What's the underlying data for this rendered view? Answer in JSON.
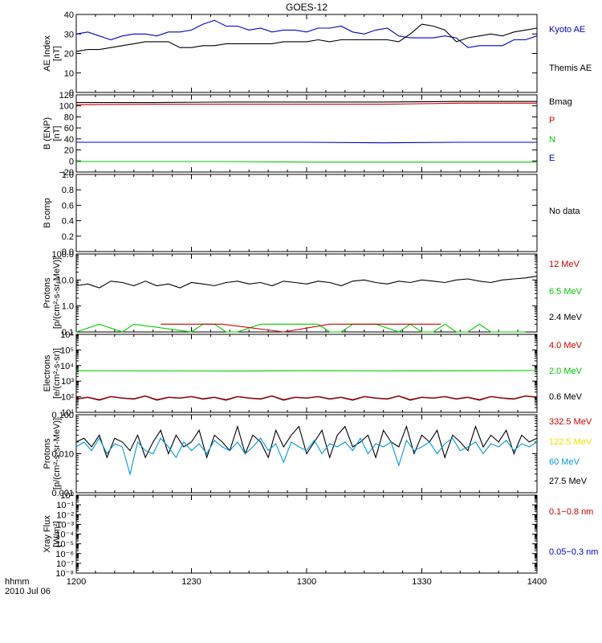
{
  "title": "GOES-12",
  "footer": {
    "label_1": "hhmm",
    "label_2": "2010 Jul 06"
  },
  "x_axis": {
    "ticks": [
      "1200",
      "1230",
      "1300",
      "1330",
      "1400"
    ],
    "range": [
      0,
      120
    ]
  },
  "chart_data": [
    {
      "type": "line",
      "ylabel_1": "AE Index",
      "ylabel_2": "[nT]",
      "scale": "linear",
      "ylim": [
        0,
        40
      ],
      "yticks": [
        "0",
        "10",
        "20",
        "30",
        "40"
      ],
      "legend": [
        {
          "name": "Kyoto AE",
          "color": "#0000cc"
        },
        {
          "name": "Themis AE",
          "color": "#000000"
        }
      ],
      "series": [
        {
          "name": "Kyoto AE",
          "color": "#0000cc",
          "x": [
            0,
            3,
            6,
            9,
            12,
            15,
            18,
            21,
            24,
            27,
            30,
            33,
            36,
            39,
            42,
            45,
            48,
            51,
            54,
            57,
            60,
            63,
            66,
            69,
            72,
            75,
            78,
            81,
            84,
            87,
            90,
            93,
            96,
            99,
            102,
            105,
            108,
            111,
            114,
            117,
            120
          ],
          "values": [
            30,
            31,
            29,
            27,
            29,
            30,
            30,
            29,
            31,
            31,
            32,
            35,
            37,
            34,
            34,
            32,
            33,
            31,
            32,
            32,
            31,
            33,
            33,
            34,
            31,
            30,
            32,
            33,
            29,
            28,
            28,
            28,
            29,
            28,
            23,
            24,
            24,
            24,
            27,
            27,
            29
          ]
        },
        {
          "name": "Themis AE",
          "color": "#000000",
          "x": [
            0,
            3,
            6,
            9,
            12,
            15,
            18,
            21,
            24,
            27,
            30,
            33,
            36,
            39,
            42,
            45,
            48,
            51,
            54,
            57,
            60,
            63,
            66,
            69,
            72,
            75,
            78,
            81,
            84,
            87,
            90,
            93,
            96,
            99,
            102,
            105,
            108,
            111,
            114,
            117,
            120
          ],
          "values": [
            21,
            22,
            22,
            23,
            24,
            25,
            26,
            26,
            26,
            23,
            23,
            24,
            24,
            25,
            25,
            25,
            25,
            25,
            26,
            26,
            26,
            27,
            26,
            27,
            27,
            27,
            27,
            27,
            26,
            30,
            35,
            34,
            32,
            26,
            28,
            29,
            30,
            29,
            31,
            32,
            33
          ]
        }
      ]
    },
    {
      "type": "line",
      "ylabel_1": "B (ENP)",
      "ylabel_2": "[nT]",
      "scale": "linear",
      "ylim": [
        -20,
        120
      ],
      "yticks": [
        "−20",
        "0",
        "20",
        "40",
        "60",
        "80",
        "100",
        "120"
      ],
      "legend": [
        {
          "name": "Bmag",
          "color": "#000000"
        },
        {
          "name": "P",
          "color": "#cc0000"
        },
        {
          "name": "N",
          "color": "#00cc00"
        },
        {
          "name": "E",
          "color": "#0000cc"
        }
      ],
      "series": [
        {
          "name": "Bmag",
          "color": "#000000",
          "x": [
            0,
            20,
            40,
            60,
            80,
            100,
            120
          ],
          "values": [
            106,
            106,
            107,
            107,
            107,
            108,
            108
          ]
        },
        {
          "name": "P",
          "color": "#cc0000",
          "x": [
            0,
            20,
            40,
            60,
            80,
            100,
            120
          ],
          "values": [
            102,
            103,
            103,
            103,
            103,
            105,
            105
          ]
        },
        {
          "name": "N",
          "color": "#00cc00",
          "x": [
            0,
            20,
            40,
            60,
            80,
            100,
            120
          ],
          "values": [
            -1,
            -1,
            -1,
            -2,
            -2,
            -2,
            -2
          ]
        },
        {
          "name": "E",
          "color": "#0000cc",
          "x": [
            0,
            20,
            40,
            60,
            80,
            100,
            120
          ],
          "values": [
            34,
            34,
            34,
            34,
            33,
            34,
            34
          ]
        }
      ]
    },
    {
      "type": "line",
      "ylabel_1": "B comp",
      "ylabel_2": "",
      "scale": "linear",
      "ylim": [
        0,
        1
      ],
      "yticks": [
        "0.0",
        "0.2",
        "0.4",
        "0.6",
        "0.8",
        "1.0"
      ],
      "legend": [
        {
          "name": "No data",
          "color": "#000000"
        }
      ],
      "series": []
    },
    {
      "type": "line",
      "ylabel_1": "Protons",
      "ylabel_2": "[p/(cm²-s-sr-MeV)]",
      "scale": "log",
      "ylim": [
        0.1,
        100
      ],
      "yticks": [
        "0.1",
        "1.0",
        "10.0",
        "100.0"
      ],
      "legend": [
        {
          "name": "12 MeV",
          "color": "#cc0000"
        },
        {
          "name": "6.5 MeV",
          "color": "#00cc00"
        },
        {
          "name": "2.4 MeV",
          "color": "#000000"
        }
      ],
      "series": [
        {
          "name": "2.4 MeV",
          "color": "#000000",
          "x": [
            0,
            3,
            6,
            9,
            12,
            15,
            18,
            21,
            24,
            27,
            30,
            33,
            36,
            39,
            42,
            45,
            48,
            51,
            54,
            57,
            60,
            63,
            66,
            69,
            72,
            75,
            78,
            81,
            84,
            87,
            90,
            93,
            96,
            99,
            102,
            105,
            108,
            111,
            114,
            117,
            120
          ],
          "values": [
            6,
            7,
            5,
            9,
            8,
            6,
            9,
            6,
            7,
            5,
            8,
            7,
            6,
            8,
            9,
            7,
            8,
            6,
            9,
            8,
            7,
            9,
            8,
            6,
            9,
            10,
            8,
            7,
            9,
            8,
            10,
            9,
            8,
            10,
            11,
            9,
            8,
            10,
            11,
            12,
            14
          ]
        },
        {
          "name": "6.5 MeV",
          "color": "#00cc00",
          "x": [
            0,
            6,
            12,
            15,
            30,
            33,
            36,
            39,
            42,
            48,
            63,
            66,
            69,
            72,
            78,
            84,
            87,
            90,
            93,
            96,
            99,
            102,
            105,
            108,
            111,
            114,
            117
          ],
          "values": [
            0.1,
            0.2,
            0.1,
            0.2,
            0.1,
            0.2,
            0.2,
            0.1,
            0.1,
            0.2,
            0.2,
            0.1,
            0.1,
            0.2,
            0.2,
            0.1,
            0.2,
            0.1,
            0.1,
            0.2,
            0.1,
            0.1,
            0.2,
            0.1,
            0.1,
            0.1,
            0.1
          ]
        },
        {
          "name": "12 MeV",
          "color": "#cc0000",
          "x": [
            22,
            38,
            54,
            66,
            75,
            87,
            95
          ],
          "values": [
            0.2,
            0.2,
            0.1,
            0.2,
            0.2,
            0.2,
            0.2
          ]
        }
      ]
    },
    {
      "type": "line",
      "ylabel_1": "Electrons",
      "ylabel_2": "[e/(cm²-s-sr)]",
      "scale": "log",
      "ylim": [
        10,
        1000000
      ],
      "yticks": [
        "10¹",
        "10²",
        "10³",
        "10⁴",
        "10⁵",
        "10⁶"
      ],
      "legend": [
        {
          "name": "4.0 MeV",
          "color": "#cc0000"
        },
        {
          "name": "2.0 MeV",
          "color": "#00cc00"
        },
        {
          "name": "0.6 MeV",
          "color": "#000000"
        }
      ],
      "series": [
        {
          "name": "2.0 MeV",
          "color": "#00cc00",
          "x": [
            0,
            20,
            40,
            60,
            80,
            100,
            120
          ],
          "values": [
            4600,
            4500,
            4400,
            4700,
            4500,
            4600,
            4800
          ]
        },
        {
          "name": "0.6 MeV",
          "color": "#000000",
          "x": [
            0,
            3,
            6,
            9,
            12,
            15,
            18,
            21,
            24,
            27,
            30,
            33,
            36,
            39,
            42,
            45,
            48,
            51,
            54,
            57,
            60,
            63,
            66,
            69,
            72,
            75,
            78,
            81,
            84,
            87,
            90,
            93,
            96,
            99,
            102,
            105,
            108,
            111,
            114,
            117,
            120
          ],
          "values": [
            70,
            90,
            60,
            100,
            80,
            70,
            110,
            60,
            90,
            80,
            100,
            70,
            90,
            60,
            100,
            80,
            70,
            110,
            60,
            90,
            80,
            100,
            70,
            90,
            60,
            100,
            80,
            70,
            110,
            60,
            90,
            80,
            100,
            70,
            90,
            60,
            100,
            80,
            70,
            110,
            90
          ]
        },
        {
          "name": "4.0 MeV",
          "color": "#cc0000",
          "x": [
            0,
            3,
            6,
            9,
            12,
            15,
            18,
            21,
            24,
            27,
            30,
            33,
            36,
            39,
            42,
            45,
            48,
            51,
            54,
            57,
            60,
            63,
            66,
            69,
            72,
            75,
            78,
            81,
            84,
            87,
            90,
            93,
            96,
            99,
            102,
            105,
            108,
            111,
            114,
            117,
            120
          ],
          "values": [
            75,
            95,
            65,
            105,
            85,
            75,
            115,
            65,
            95,
            85,
            105,
            75,
            95,
            65,
            105,
            85,
            75,
            115,
            65,
            95,
            85,
            105,
            75,
            95,
            65,
            105,
            85,
            75,
            115,
            65,
            95,
            85,
            105,
            75,
            95,
            65,
            105,
            85,
            75,
            115,
            95
          ]
        }
      ]
    },
    {
      "type": "line",
      "ylabel_1": "Protons",
      "ylabel_2": "[p/(cm²-s-sr-MeV)]",
      "scale": "log",
      "ylim": [
        0.001,
        0.1
      ],
      "yticks": [
        "0.001",
        "0.010",
        "0.100"
      ],
      "legend": [
        {
          "name": "332.5 MeV",
          "color": "#cc0000"
        },
        {
          "name": "122.5 MeV",
          "color": "#e6e600"
        },
        {
          "name": "60 MeV",
          "color": "#0099dd"
        },
        {
          "name": "27.5 MeV",
          "color": "#000000"
        }
      ],
      "series": [
        {
          "name": "27.5 MeV",
          "color": "#000000",
          "x": [
            0,
            2,
            4,
            6,
            8,
            10,
            12,
            14,
            16,
            18,
            20,
            22,
            24,
            26,
            28,
            30,
            32,
            34,
            36,
            38,
            40,
            42,
            44,
            46,
            48,
            50,
            52,
            54,
            56,
            58,
            60,
            62,
            64,
            66,
            68,
            70,
            72,
            74,
            76,
            78,
            80,
            82,
            84,
            86,
            88,
            90,
            92,
            94,
            96,
            98,
            100,
            102,
            104,
            106,
            108,
            110,
            112,
            114,
            116,
            118,
            120
          ],
          "values": [
            0.02,
            0.025,
            0.015,
            0.03,
            0.008,
            0.025,
            0.02,
            0.012,
            0.03,
            0.008,
            0.02,
            0.04,
            0.01,
            0.03,
            0.015,
            0.02,
            0.04,
            0.008,
            0.03,
            0.02,
            0.012,
            0.05,
            0.01,
            0.03,
            0.02,
            0.008,
            0.04,
            0.015,
            0.03,
            0.05,
            0.01,
            0.02,
            0.04,
            0.008,
            0.03,
            0.05,
            0.015,
            0.02,
            0.03,
            0.008,
            0.04,
            0.02,
            0.015,
            0.05,
            0.01,
            0.03,
            0.02,
            0.04,
            0.008,
            0.03,
            0.02,
            0.012,
            0.05,
            0.015,
            0.03,
            0.02,
            0.04,
            0.01,
            0.03,
            0.02,
            0.025
          ]
        },
        {
          "name": "60 MeV",
          "color": "#0099dd",
          "x": [
            0,
            2,
            4,
            6,
            8,
            10,
            12,
            14,
            16,
            18,
            20,
            22,
            24,
            26,
            28,
            30,
            32,
            34,
            36,
            38,
            40,
            42,
            44,
            46,
            48,
            50,
            52,
            54,
            56,
            58,
            60,
            62,
            64,
            66,
            68,
            70,
            72,
            74,
            76,
            78,
            80,
            82,
            84,
            86,
            88,
            90,
            92,
            94,
            96,
            98,
            100,
            102,
            104,
            106,
            108,
            110,
            112,
            114,
            116,
            118,
            120
          ],
          "values": [
            0.015,
            0.02,
            0.012,
            0.025,
            0.01,
            0.018,
            0.015,
            0.003,
            0.02,
            0.012,
            0.01,
            0.025,
            0.015,
            0.008,
            0.02,
            0.012,
            0.018,
            0.01,
            0.022,
            0.015,
            0.012,
            0.02,
            0.01,
            0.015,
            0.025,
            0.012,
            0.018,
            0.006,
            0.02,
            0.015,
            0.012,
            0.022,
            0.01,
            0.018,
            0.015,
            0.02,
            0.012,
            0.025,
            0.01,
            0.018,
            0.015,
            0.02,
            0.005,
            0.022,
            0.012,
            0.015,
            0.02,
            0.01,
            0.018,
            0.025,
            0.012,
            0.015,
            0.02,
            0.01,
            0.018,
            0.015,
            0.022,
            0.012,
            0.018,
            0.015,
            0.02
          ]
        }
      ]
    },
    {
      "type": "line",
      "ylabel_1": "Xray Flux",
      "ylabel_2": "[W/m²]",
      "scale": "log",
      "ylim": [
        1e-08,
        1
      ],
      "yticks": [
        "10⁻⁸",
        "10⁻⁷",
        "10⁻⁶",
        "10⁻⁵",
        "10⁻⁴",
        "10⁻³",
        "10⁻²",
        "10⁻¹",
        "10⁰"
      ],
      "legend": [
        {
          "name": "0.1−0.8 nm",
          "color": "#cc0000"
        },
        {
          "name": "0.05−0.3 nm",
          "color": "#0000cc"
        }
      ],
      "series": []
    }
  ]
}
